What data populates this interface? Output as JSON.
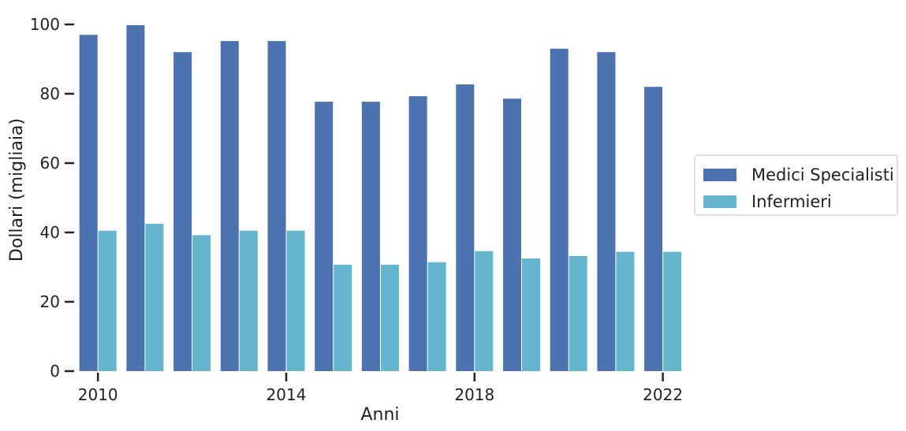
{
  "chart_data": {
    "type": "bar",
    "x": [
      2010,
      2011,
      2012,
      2013,
      2014,
      2015,
      2016,
      2017,
      2018,
      2019,
      2020,
      2021,
      2022
    ],
    "series": [
      {
        "name": "Medici Specialisti",
        "color": "#4C72B0",
        "values": [
          97,
          99.8,
          92,
          95.2,
          95.2,
          77.7,
          77.7,
          79.3,
          82.7,
          78.6,
          93,
          92,
          82
        ]
      },
      {
        "name": "Infermieri",
        "color": "#64B5CD",
        "values": [
          40.5,
          42.5,
          39.2,
          40.5,
          40.5,
          30.7,
          30.7,
          31.4,
          34.6,
          32.5,
          33.2,
          34.4,
          34.4
        ]
      }
    ],
    "xlabel": "Anni",
    "ylabel": "Dollari (migliaia)",
    "ylim": [
      0,
      100
    ],
    "yticks": [
      0,
      20,
      40,
      60,
      80,
      100
    ],
    "xticks": [
      2010,
      2014,
      2018,
      2022
    ],
    "legend_position": "right",
    "grid": false
  }
}
